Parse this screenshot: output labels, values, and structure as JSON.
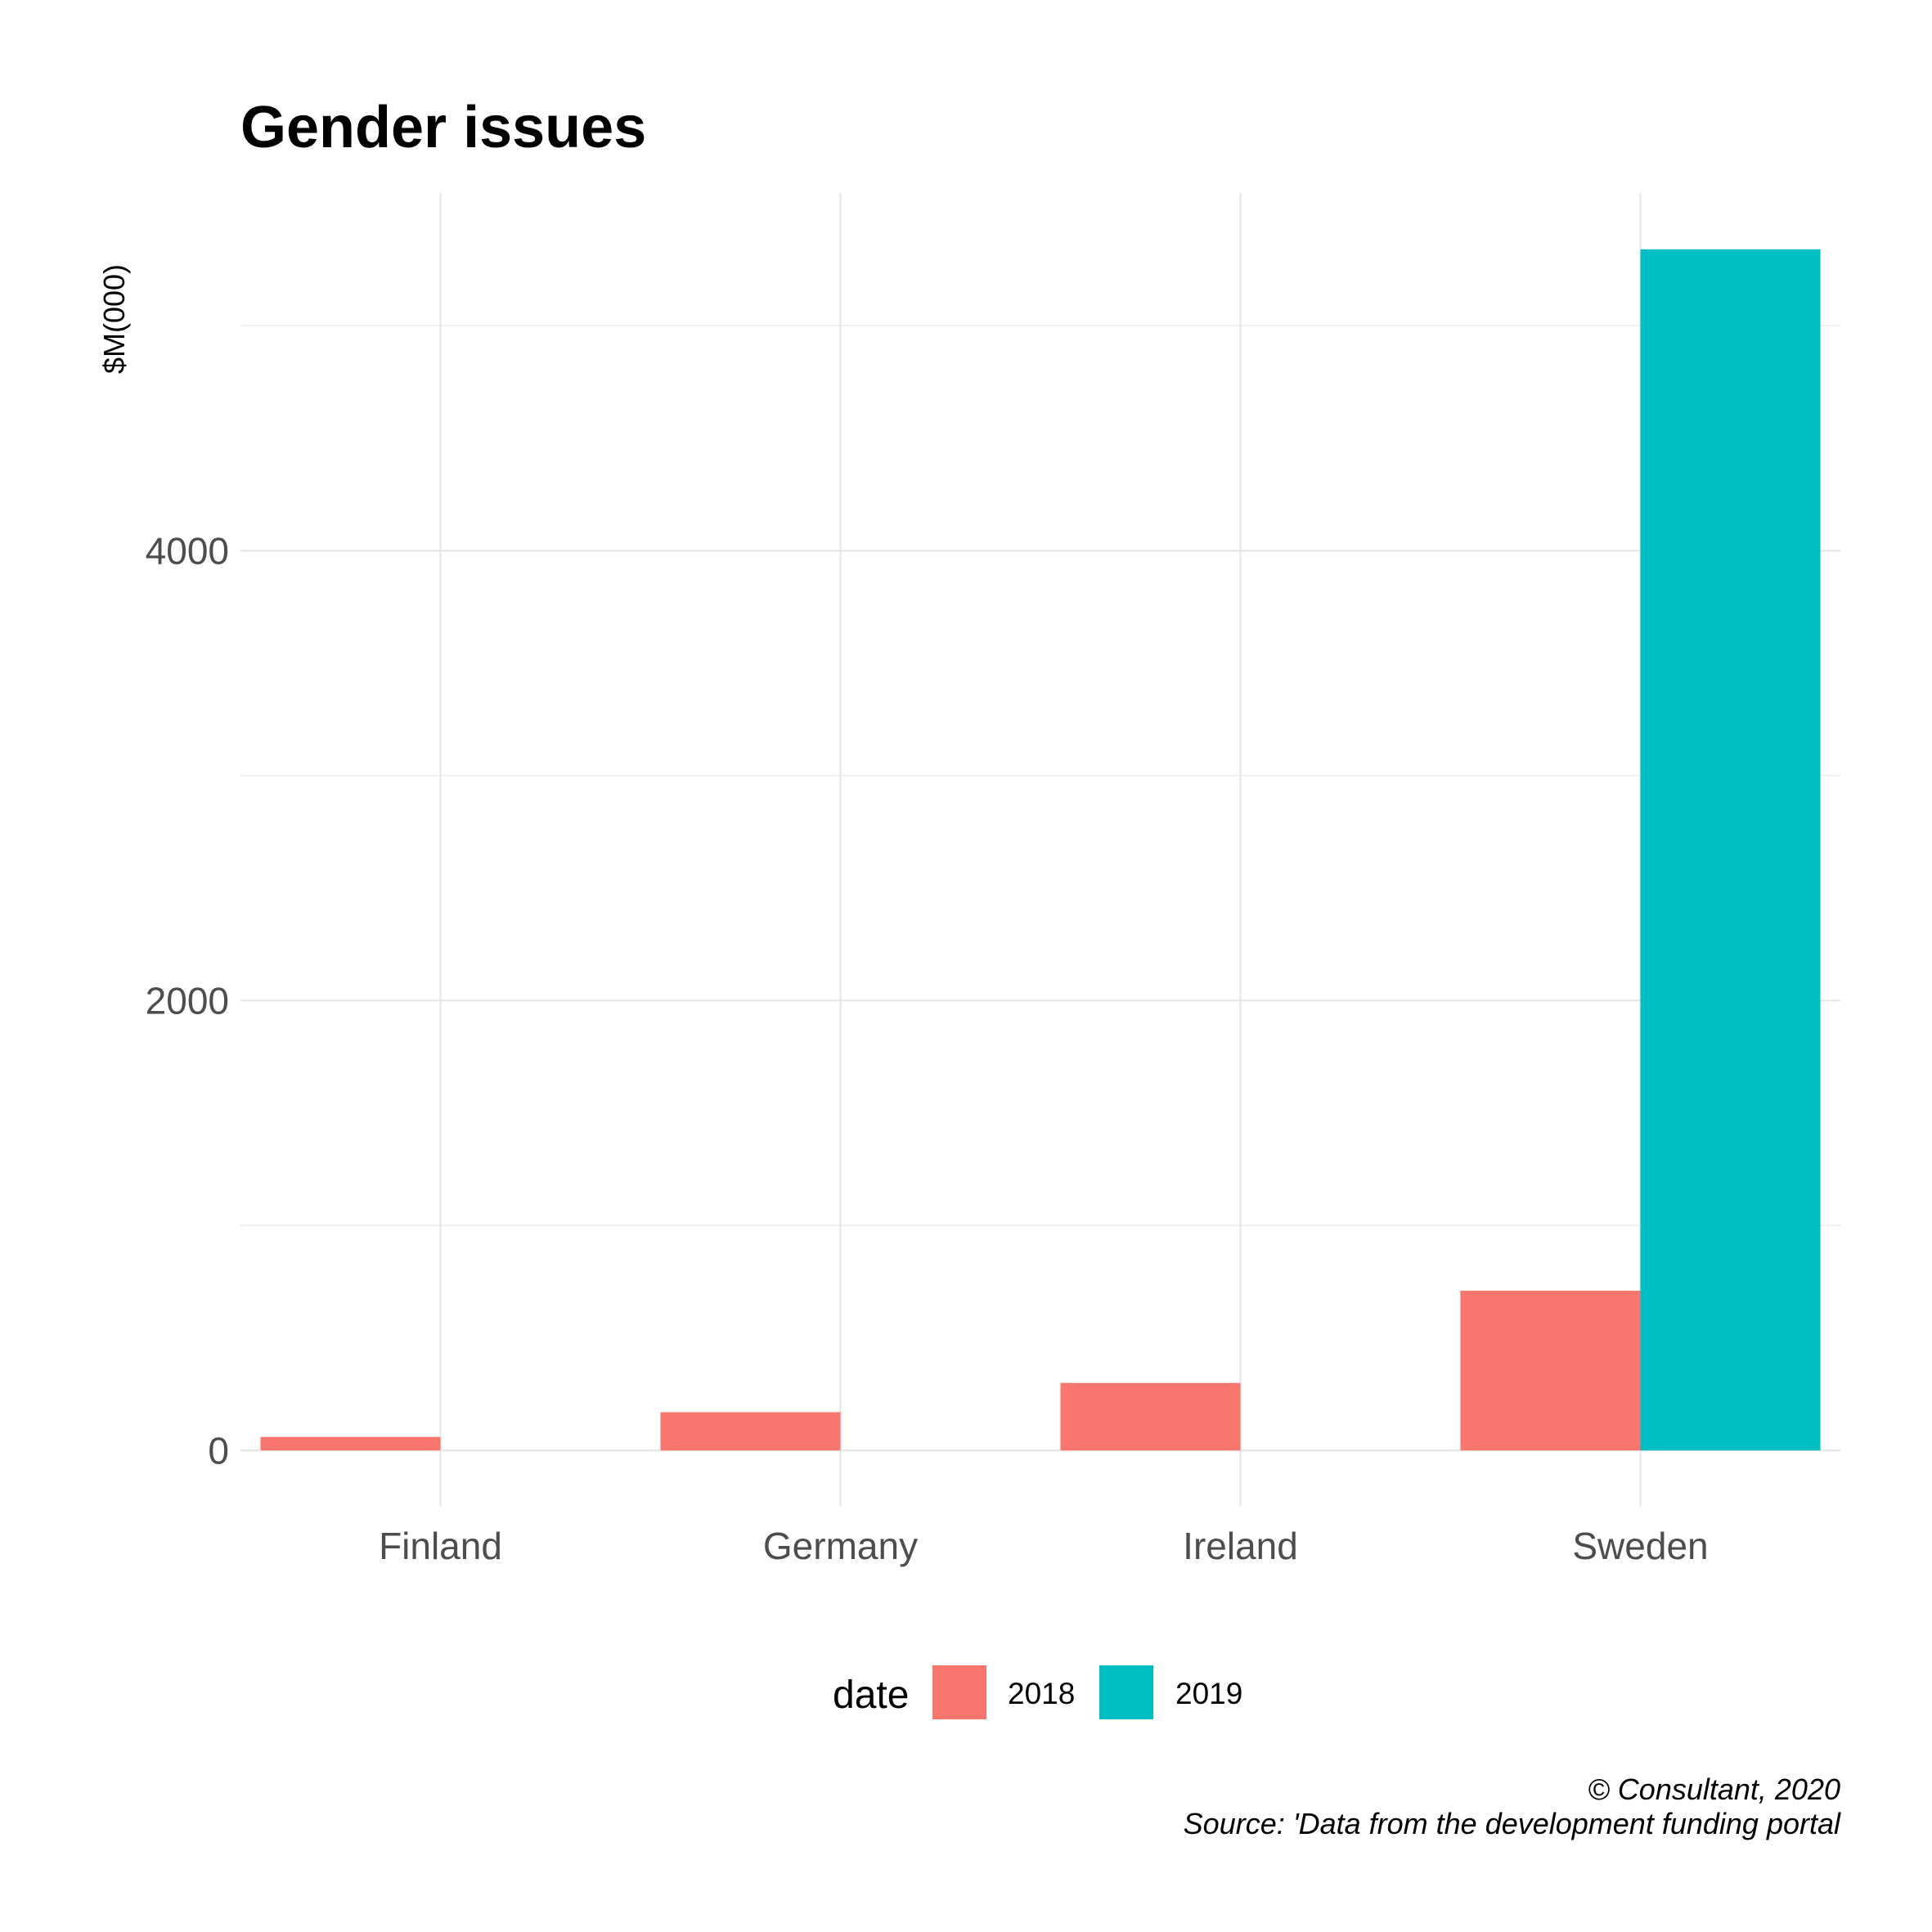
{
  "chart_data": {
    "type": "bar",
    "title": "Gender issues",
    "ylabel": "$M(000)",
    "xlabel": "",
    "categories": [
      "Finland",
      "Germany",
      "Ireland",
      "Sweden"
    ],
    "series": [
      {
        "name": "2018",
        "color": "#F8766D",
        "values": [
          60,
          170,
          300,
          710
        ]
      },
      {
        "name": "2019",
        "color": "#00BFC4",
        "values": [
          null,
          null,
          null,
          5340
        ]
      }
    ],
    "ylim": [
      -250,
      5590
    ],
    "yticks": [
      0,
      2000,
      4000
    ],
    "grid": true,
    "legend": {
      "title": "date",
      "position": "bottom"
    }
  },
  "caption": {
    "line1": "© Consultant, 2020",
    "line2": "Source: 'Data from the development funding portal"
  }
}
